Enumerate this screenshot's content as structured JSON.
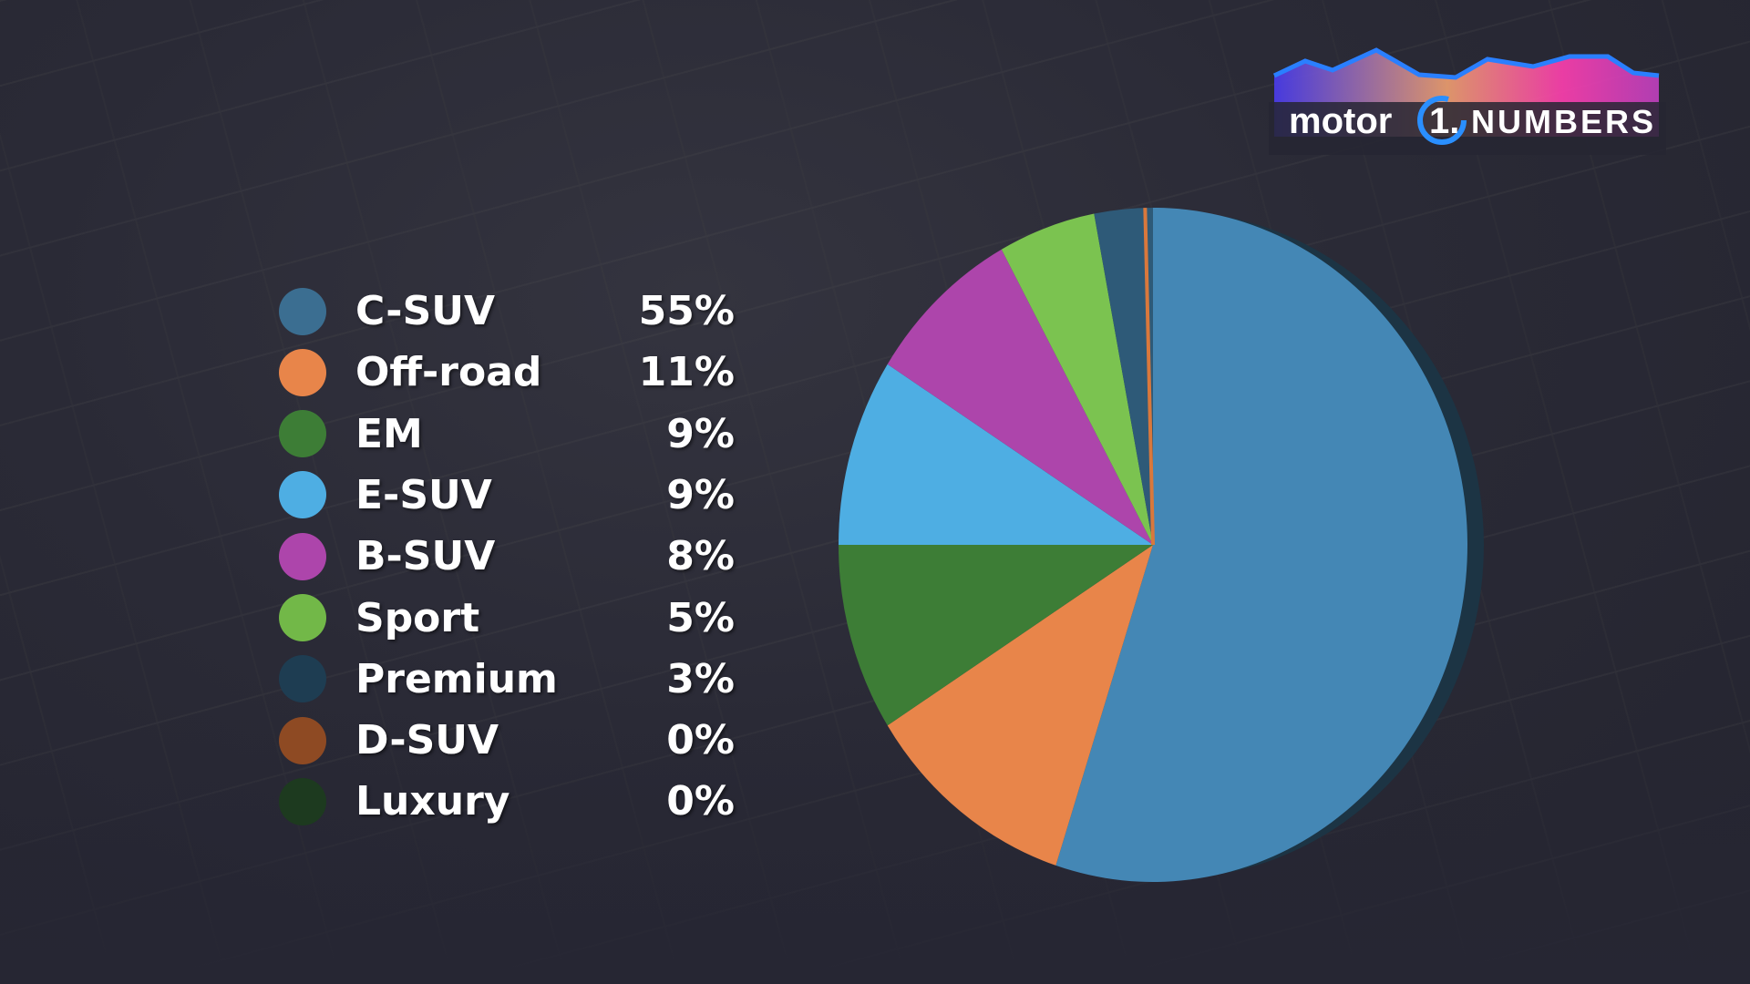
{
  "logo": {
    "text_left": "motor",
    "text_mid": "1.",
    "text_right": "NUMBERS"
  },
  "chart_data": {
    "type": "pie",
    "title": "",
    "start": "top",
    "direction": "clockwise",
    "slices": [
      {
        "label": "C-SUV",
        "value": 55,
        "display": "55%",
        "color": "#4487b5",
        "legend_color": "#3b6e91"
      },
      {
        "label": "Off-road",
        "value": 11,
        "display": "11%",
        "color": "#e8854a",
        "legend_color": "#e8854a"
      },
      {
        "label": "EM",
        "value": 9,
        "display": "9%",
        "color": "#3d7d36",
        "legend_color": "#3d7d36"
      },
      {
        "label": "E-SUV",
        "value": 9,
        "display": "9%",
        "color": "#4eaee3",
        "legend_color": "#4eaee3"
      },
      {
        "label": "B-SUV",
        "value": 8,
        "display": "8%",
        "color": "#ad45ab",
        "legend_color": "#ad45ab"
      },
      {
        "label": "Sport",
        "value": 5,
        "display": "5%",
        "color": "#7bc350",
        "legend_color": "#72b848"
      },
      {
        "label": "Premium",
        "value": 3,
        "display": "3%",
        "color": "#2e5a78",
        "legend_color": "#1e3d52"
      },
      {
        "label": "D-SUV",
        "value": 0,
        "display": "0%",
        "color": "#d9783c",
        "legend_color": "#8e4a23"
      },
      {
        "label": "Luxury",
        "value": 0,
        "display": "0%",
        "color": "#1d3a1f",
        "legend_color": "#1d3a1f"
      }
    ],
    "legend": "left"
  }
}
